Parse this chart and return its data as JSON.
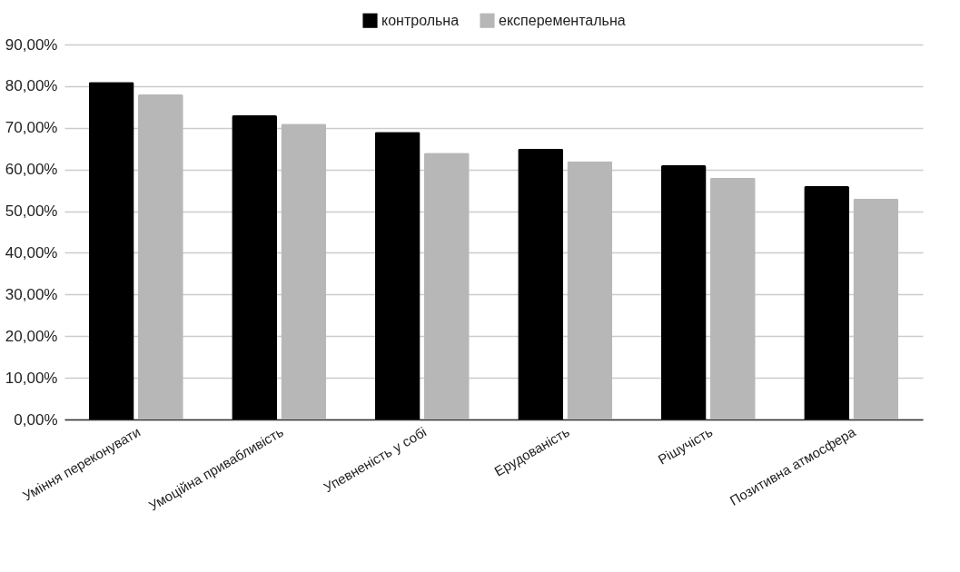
{
  "chart_data": {
    "type": "bar",
    "categories": [
      "Уміння переконувати",
      "Умоційна привабливість",
      "Упевненість у собі",
      "Ерудованість",
      "Рішучість",
      "Позитивна атмосфера"
    ],
    "series": [
      {
        "name": "контрольна",
        "color": "#000000",
        "values": [
          81,
          73,
          69,
          65,
          61,
          56
        ]
      },
      {
        "name": "експерементальна",
        "color": "#b7b7b7",
        "values": [
          78,
          71,
          64,
          62,
          58,
          53
        ]
      }
    ],
    "ylim": [
      0,
      90
    ],
    "yticks": [
      {
        "value": 0,
        "label": "0,00%"
      },
      {
        "value": 10,
        "label": "10,00%"
      },
      {
        "value": 20,
        "label": "20,00%"
      },
      {
        "value": 30,
        "label": "30,00%"
      },
      {
        "value": 40,
        "label": "40,00%"
      },
      {
        "value": 50,
        "label": "50,00%"
      },
      {
        "value": 60,
        "label": "60,00%"
      },
      {
        "value": 70,
        "label": "70,00%"
      },
      {
        "value": 80,
        "label": "80,00%"
      },
      {
        "value": 90,
        "label": "90,00%"
      }
    ],
    "grid": "y",
    "legend": "top"
  }
}
